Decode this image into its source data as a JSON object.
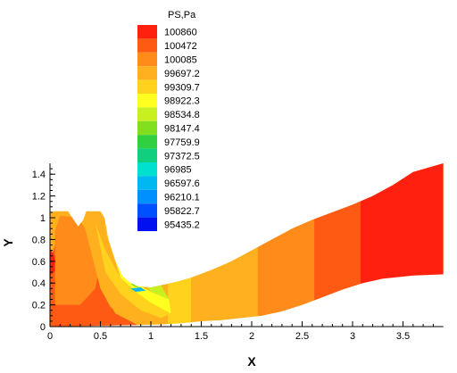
{
  "chart_data": {
    "type": "contour",
    "xlabel": "X",
    "ylabel": "Y",
    "xlim": [
      0,
      4
    ],
    "ylim": [
      0,
      1.5
    ],
    "x_ticks": [
      "0",
      "0.5",
      "1",
      "1.5",
      "2",
      "2.5",
      "3",
      "3.5"
    ],
    "y_ticks": [
      "0",
      "0.2",
      "0.4",
      "0.6",
      "0.8",
      "1",
      "1.2",
      "1.4"
    ],
    "legend": {
      "title": "PS,Pa",
      "placement": "top-center",
      "levels": [
        "100860",
        "100472",
        "100085",
        "99697.2",
        "99309.7",
        "98922.3",
        "98534.8",
        "98147.4",
        "97759.9",
        "97372.5",
        "96985",
        "96597.6",
        "96210.1",
        "95822.7",
        "95435.2"
      ],
      "colors": [
        "#ff2010",
        "#ff5a14",
        "#ff8c1a",
        "#ffb01e",
        "#ffd21e",
        "#ffff20",
        "#c8f020",
        "#80e020",
        "#30d040",
        "#10d080",
        "#00e0d0",
        "#00b8f0",
        "#0090ff",
        "#0050ff",
        "#0010f0"
      ]
    },
    "regions": [
      {
        "level": "100472",
        "points": [
          [
            0,
            0
          ],
          [
            0,
            0.62
          ],
          [
            0.04,
            0.72
          ],
          [
            0.08,
            0.88
          ],
          [
            0.18,
            0.92
          ],
          [
            0.32,
            0.82
          ],
          [
            0.45,
            0.6
          ],
          [
            0.5,
            0.35
          ],
          [
            0.6,
            0.18
          ],
          [
            0.75,
            0.08
          ],
          [
            0.9,
            0
          ],
          [
            1.1,
            0
          ]
        ]
      },
      {
        "level": "100860",
        "points": [
          [
            0,
            0.47
          ],
          [
            0.06,
            0.52
          ],
          [
            0.06,
            0.62
          ],
          [
            0,
            0.72
          ]
        ]
      },
      {
        "level": "100085",
        "points": [
          [
            0.05,
            0.88
          ],
          [
            0.1,
            1.02
          ],
          [
            0.28,
            1.0
          ],
          [
            0.35,
            0.9
          ],
          [
            0.5,
            0.6
          ],
          [
            0.45,
            0.35
          ],
          [
            0.3,
            0.2
          ],
          [
            0.05,
            0.2
          ]
        ]
      },
      {
        "level": "99697.2",
        "points": [
          [
            0.32,
            1.0
          ],
          [
            0.45,
            0.82
          ],
          [
            0.55,
            0.5
          ],
          [
            0.7,
            0.3
          ],
          [
            0.9,
            0.15
          ],
          [
            1.1,
            0.08
          ],
          [
            0.9,
            0
          ],
          [
            0.65,
            0.12
          ],
          [
            0.5,
            0.35
          ]
        ]
      },
      {
        "level": "99309.7",
        "points": [
          [
            0.45,
            0.95
          ],
          [
            0.55,
            0.7
          ],
          [
            0.7,
            0.45
          ],
          [
            0.9,
            0.3
          ],
          [
            1.05,
            0.2
          ],
          [
            1.2,
            0.12
          ],
          [
            1.1,
            0.08
          ],
          [
            0.9,
            0.15
          ],
          [
            0.7,
            0.3
          ],
          [
            0.55,
            0.5
          ]
        ]
      },
      {
        "level": "98922.3",
        "points": [
          [
            0.5,
            1.03
          ],
          [
            0.6,
            0.75
          ],
          [
            0.72,
            0.5
          ],
          [
            0.85,
            0.4
          ],
          [
            1.0,
            0.32
          ],
          [
            1.18,
            0.25
          ],
          [
            1.2,
            0.12
          ],
          [
            1.0,
            0.22
          ],
          [
            0.85,
            0.32
          ],
          [
            0.7,
            0.45
          ]
        ]
      },
      {
        "level": "98534.8",
        "points": [
          [
            0.6,
            0.8
          ],
          [
            0.7,
            0.55
          ],
          [
            0.82,
            0.45
          ],
          [
            1.0,
            0.38
          ],
          [
            1.1,
            0.38
          ],
          [
            1.18,
            0.25
          ],
          [
            1.0,
            0.32
          ]
        ]
      },
      {
        "level": "97759.9",
        "points": [
          [
            0.75,
            0.45
          ],
          [
            0.82,
            0.38
          ],
          [
            0.92,
            0.34
          ],
          [
            0.8,
            0.4
          ]
        ]
      },
      {
        "level": "96597.6",
        "points": [
          [
            0.8,
            0.35
          ],
          [
            0.9,
            0.36
          ],
          [
            0.95,
            0.33
          ],
          [
            0.85,
            0.32
          ]
        ]
      }
    ],
    "bands": [
      {
        "x_from": 1.17,
        "x_to": 1.4,
        "level": "99309.7"
      },
      {
        "x_from": 1.4,
        "x_to": 2.06,
        "level": "99697.2"
      },
      {
        "x_from": 2.06,
        "x_to": 2.62,
        "level": "100085"
      },
      {
        "x_from": 2.62,
        "x_to": 3.08,
        "level": "100472"
      },
      {
        "x_from": 3.08,
        "x_to": 3.9,
        "level": "100860"
      }
    ],
    "boundary_top": [
      [
        0,
        1.05
      ],
      [
        0.05,
        1.06
      ],
      [
        0.18,
        1.06
      ],
      [
        0.22,
        1.0
      ],
      [
        0.28,
        0.92
      ],
      [
        0.33,
        0.98
      ],
      [
        0.36,
        1.06
      ],
      [
        0.5,
        1.06
      ],
      [
        0.54,
        1.0
      ],
      [
        0.58,
        0.8
      ],
      [
        0.65,
        0.6
      ],
      [
        0.72,
        0.46
      ],
      [
        0.8,
        0.4
      ],
      [
        0.88,
        0.37
      ],
      [
        1.0,
        0.36
      ],
      [
        1.1,
        0.38
      ],
      [
        1.25,
        0.41
      ],
      [
        1.4,
        0.45
      ],
      [
        1.6,
        0.52
      ],
      [
        1.8,
        0.6
      ],
      [
        2.0,
        0.7
      ],
      [
        2.2,
        0.8
      ],
      [
        2.4,
        0.9
      ],
      [
        2.6,
        0.98
      ],
      [
        2.8,
        1.05
      ],
      [
        3.0,
        1.12
      ],
      [
        3.2,
        1.2
      ],
      [
        3.4,
        1.3
      ],
      [
        3.6,
        1.42
      ],
      [
        3.9,
        1.5
      ]
    ],
    "boundary_bottom": [
      [
        3.9,
        0.48
      ],
      [
        3.6,
        0.47
      ],
      [
        3.3,
        0.44
      ],
      [
        3.1,
        0.4
      ],
      [
        2.9,
        0.34
      ],
      [
        2.7,
        0.27
      ],
      [
        2.5,
        0.2
      ],
      [
        2.3,
        0.14
      ],
      [
        2.1,
        0.1
      ],
      [
        1.9,
        0.08
      ],
      [
        1.7,
        0.06
      ],
      [
        1.5,
        0.05
      ],
      [
        1.3,
        0.03
      ],
      [
        1.1,
        0.02
      ],
      [
        0,
        0
      ]
    ]
  }
}
